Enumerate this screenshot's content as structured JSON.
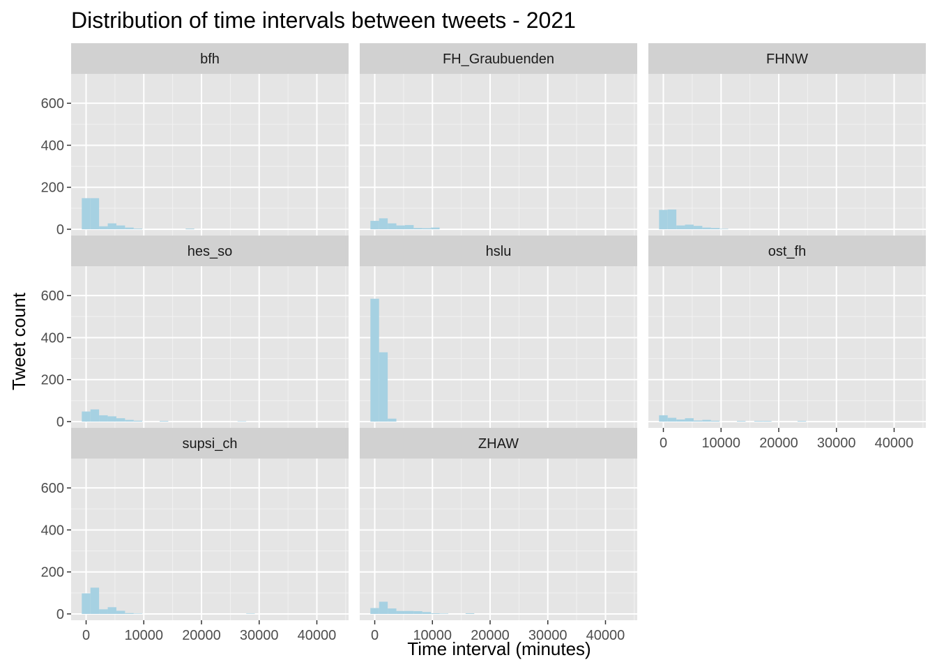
{
  "chart_data": {
    "type": "bar",
    "title": "Distribution of time intervals between tweets - 2021",
    "xlabel": "Time interval (minutes)",
    "ylabel": "Tweet count",
    "xlim": [
      -2600,
      45500
    ],
    "ylim": [
      -30,
      740
    ],
    "x_ticks": [
      0,
      10000,
      20000,
      30000,
      40000
    ],
    "x_tick_labels": [
      "0",
      "10000",
      "20000",
      "30000",
      "40000"
    ],
    "y_ticks": [
      0,
      200,
      400,
      600
    ],
    "y_tick_labels": [
      "0",
      "200",
      "400",
      "600"
    ],
    "bin_width": 1500,
    "bar_color": "#a6d1e2",
    "panel_background": "#e5e5e5",
    "strip_background": "#d1d1d1",
    "grid": true,
    "facets": [
      {
        "name": "bfh",
        "bins": [
          {
            "x": 0,
            "count": 148
          },
          {
            "x": 1500,
            "count": 148
          },
          {
            "x": 3000,
            "count": 14
          },
          {
            "x": 4500,
            "count": 28
          },
          {
            "x": 6000,
            "count": 18
          },
          {
            "x": 7500,
            "count": 8
          },
          {
            "x": 9000,
            "count": 3
          },
          {
            "x": 18000,
            "count": 3
          }
        ]
      },
      {
        "name": "FH_Graubuenden",
        "bins": [
          {
            "x": 0,
            "count": 40
          },
          {
            "x": 1500,
            "count": 52
          },
          {
            "x": 3000,
            "count": 28
          },
          {
            "x": 4500,
            "count": 18
          },
          {
            "x": 6000,
            "count": 20
          },
          {
            "x": 7500,
            "count": 6
          },
          {
            "x": 9000,
            "count": 5
          },
          {
            "x": 10500,
            "count": 8
          }
        ]
      },
      {
        "name": "FHNW",
        "bins": [
          {
            "x": 0,
            "count": 92
          },
          {
            "x": 1500,
            "count": 94
          },
          {
            "x": 3000,
            "count": 18
          },
          {
            "x": 4500,
            "count": 22
          },
          {
            "x": 6000,
            "count": 16
          },
          {
            "x": 7500,
            "count": 8
          },
          {
            "x": 9000,
            "count": 6
          },
          {
            "x": 10500,
            "count": 2
          }
        ]
      },
      {
        "name": "hes_so",
        "bins": [
          {
            "x": 0,
            "count": 48
          },
          {
            "x": 1500,
            "count": 58
          },
          {
            "x": 3000,
            "count": 30
          },
          {
            "x": 4500,
            "count": 25
          },
          {
            "x": 6000,
            "count": 16
          },
          {
            "x": 7500,
            "count": 8
          },
          {
            "x": 9000,
            "count": 4
          },
          {
            "x": 13500,
            "count": 3
          },
          {
            "x": 27000,
            "count": 2
          }
        ]
      },
      {
        "name": "hslu",
        "bins": [
          {
            "x": 0,
            "count": 585
          },
          {
            "x": 1500,
            "count": 330
          },
          {
            "x": 3000,
            "count": 14
          }
        ]
      },
      {
        "name": "ost_fh",
        "bins": [
          {
            "x": 0,
            "count": 30
          },
          {
            "x": 1500,
            "count": 18
          },
          {
            "x": 3000,
            "count": 10
          },
          {
            "x": 4500,
            "count": 16
          },
          {
            "x": 6000,
            "count": 5
          },
          {
            "x": 7500,
            "count": 8
          },
          {
            "x": 9000,
            "count": 4
          },
          {
            "x": 13500,
            "count": 3
          },
          {
            "x": 16500,
            "count": 3
          },
          {
            "x": 18000,
            "count": 3
          },
          {
            "x": 24000,
            "count": 3
          }
        ]
      },
      {
        "name": "supsi_ch",
        "bins": [
          {
            "x": 0,
            "count": 98
          },
          {
            "x": 1500,
            "count": 125
          },
          {
            "x": 3000,
            "count": 22
          },
          {
            "x": 4500,
            "count": 32
          },
          {
            "x": 6000,
            "count": 15
          },
          {
            "x": 7500,
            "count": 4
          },
          {
            "x": 9000,
            "count": 2
          },
          {
            "x": 28500,
            "count": 2
          }
        ]
      },
      {
        "name": "ZHAW",
        "bins": [
          {
            "x": 0,
            "count": 28
          },
          {
            "x": 1500,
            "count": 58
          },
          {
            "x": 3000,
            "count": 26
          },
          {
            "x": 4500,
            "count": 14
          },
          {
            "x": 6000,
            "count": 14
          },
          {
            "x": 7500,
            "count": 13
          },
          {
            "x": 9000,
            "count": 9
          },
          {
            "x": 10500,
            "count": 3
          },
          {
            "x": 12000,
            "count": 2
          },
          {
            "x": 16500,
            "count": 3
          }
        ]
      }
    ]
  }
}
